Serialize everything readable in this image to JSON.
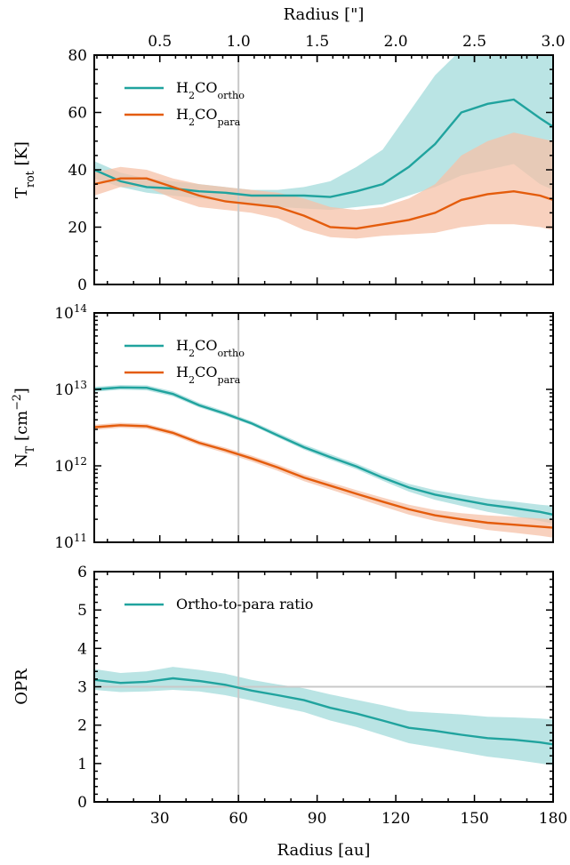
{
  "figure": {
    "top_axis_label": "Radius [\"]",
    "top_ticks": [
      "0.5",
      "1.0",
      "1.5",
      "2.0",
      "2.5",
      "3.0"
    ],
    "bottom_axis_label": "Radius [au]"
  },
  "colors": {
    "ortho": "#20a39e",
    "para": "#e45c0c",
    "ortho_band": "#b3e1e1",
    "para_band": "#f5c2a8",
    "ref_line": "#c8c8c8"
  },
  "chart_data": [
    {
      "type": "line",
      "panel": "temperature",
      "ylabel": "T_rot [K]",
      "xlim": [
        5,
        180
      ],
      "ylim": [
        0,
        80
      ],
      "y_ticks": [
        "0",
        "20",
        "40",
        "60",
        "80"
      ],
      "x_ref_line": 60,
      "grid": false,
      "legend": "upper-left",
      "series": [
        {
          "name": "H2CO_ortho",
          "x": [
            5,
            15,
            25,
            35,
            45,
            55,
            65,
            75,
            85,
            95,
            105,
            115,
            125,
            135,
            145,
            155,
            165,
            175,
            180
          ],
          "y": [
            40,
            36,
            34,
            33.5,
            32.5,
            32,
            31,
            31,
            31,
            30.5,
            32.5,
            35,
            41,
            49,
            60,
            63,
            64.5,
            58,
            55
          ],
          "lower": [
            37,
            34,
            32,
            31,
            30,
            29,
            28,
            27,
            26.5,
            26,
            27,
            28,
            31,
            34,
            38,
            40,
            42,
            35,
            33
          ],
          "upper": [
            43,
            39,
            37,
            36,
            35,
            34,
            33,
            33,
            34,
            36,
            41,
            47,
            60,
            73,
            82,
            85,
            88,
            86,
            85
          ]
        },
        {
          "name": "H2CO_para",
          "x": [
            5,
            15,
            25,
            35,
            45,
            55,
            65,
            75,
            85,
            95,
            105,
            115,
            125,
            135,
            145,
            155,
            165,
            175,
            180
          ],
          "y": [
            35,
            37,
            37,
            34,
            31,
            29,
            28,
            27,
            24,
            20,
            19.5,
            21,
            22.5,
            25,
            29.5,
            31.5,
            32.5,
            31,
            29.5
          ],
          "lower": [
            31,
            34,
            34,
            30,
            27,
            26,
            25,
            23,
            19,
            16.5,
            16,
            17,
            17.5,
            18,
            20,
            21,
            21,
            20,
            19
          ],
          "upper": [
            39,
            41,
            40,
            37,
            35,
            34,
            33,
            32,
            30,
            27,
            26,
            27,
            30,
            35,
            45,
            50,
            53,
            51,
            50
          ]
        }
      ]
    },
    {
      "type": "line",
      "panel": "column_density",
      "ylabel": "N_T [cm^-2]",
      "yscale": "log",
      "xlim": [
        5,
        180
      ],
      "ylim": [
        100000000000.0,
        100000000000000.0
      ],
      "y_ticks": [
        "10^11",
        "10^12",
        "10^13",
        "10^14"
      ],
      "x_ref_line": 60,
      "grid": false,
      "legend": "upper-left",
      "series": [
        {
          "name": "H2CO_ortho",
          "x": [
            5,
            15,
            25,
            35,
            45,
            55,
            65,
            75,
            85,
            95,
            105,
            115,
            125,
            135,
            145,
            155,
            165,
            175,
            180
          ],
          "y": [
            10000000000000.0,
            10600000000000.0,
            10500000000000.0,
            8700000000000.0,
            6200000000000.0,
            4800000000000.0,
            3600000000000.0,
            2500000000000.0,
            1750000000000.0,
            1300000000000.0,
            980000000000.0,
            700000000000.0,
            520000000000.0,
            420000000000.0,
            360000000000.0,
            310000000000.0,
            280000000000.0,
            250000000000.0,
            230000000000.0
          ],
          "lower": [
            9300000000000.0,
            9900000000000.0,
            9700000000000.0,
            8100000000000.0,
            5800000000000.0,
            4500000000000.0,
            3400000000000.0,
            2350000000000.0,
            1630000000000.0,
            1200000000000.0,
            900000000000.0,
            640000000000.0,
            460000000000.0,
            360000000000.0,
            300000000000.0,
            250000000000.0,
            220000000000.0,
            190000000000.0,
            175000000000.0
          ],
          "upper": [
            10800000000000.0,
            11400000000000.0,
            11300000000000.0,
            9400000000000.0,
            6700000000000.0,
            5150000000000.0,
            3850000000000.0,
            2700000000000.0,
            1900000000000.0,
            1420000000000.0,
            1070000000000.0,
            770000000000.0,
            580000000000.0,
            480000000000.0,
            420000000000.0,
            370000000000.0,
            340000000000.0,
            310000000000.0,
            300000000000.0
          ]
        },
        {
          "name": "H2CO_para",
          "x": [
            5,
            15,
            25,
            35,
            45,
            55,
            65,
            75,
            85,
            95,
            105,
            115,
            125,
            135,
            145,
            155,
            165,
            175,
            180
          ],
          "y": [
            3200000000000.0,
            3400000000000.0,
            3300000000000.0,
            2700000000000.0,
            2000000000000.0,
            1600000000000.0,
            1250000000000.0,
            950000000000.0,
            700000000000.0,
            550000000000.0,
            430000000000.0,
            340000000000.0,
            270000000000.0,
            225000000000.0,
            200000000000.0,
            180000000000.0,
            170000000000.0,
            160000000000.0,
            155000000000.0
          ],
          "lower": [
            2950000000000.0,
            3150000000000.0,
            3050000000000.0,
            2500000000000.0,
            1850000000000.0,
            1470000000000.0,
            1140000000000.0,
            860000000000.0,
            630000000000.0,
            490000000000.0,
            380000000000.0,
            295000000000.0,
            230000000000.0,
            190000000000.0,
            165000000000.0,
            145000000000.0,
            133000000000.0,
            122000000000.0,
            115000000000.0
          ],
          "upper": [
            3450000000000.0,
            3650000000000.0,
            3550000000000.0,
            2900000000000.0,
            2150000000000.0,
            1730000000000.0,
            1360000000000.0,
            1040000000000.0,
            770000000000.0,
            610000000000.0,
            480000000000.0,
            385000000000.0,
            310000000000.0,
            265000000000.0,
            240000000000.0,
            225000000000.0,
            215000000000.0,
            205000000000.0,
            200000000000.0
          ]
        }
      ]
    },
    {
      "type": "line",
      "panel": "opr",
      "ylabel": "OPR",
      "xlabel": "Radius [au]",
      "xlim": [
        5,
        180
      ],
      "ylim": [
        0,
        6
      ],
      "x_ticks": [
        "30",
        "60",
        "90",
        "120",
        "150",
        "180"
      ],
      "y_ticks": [
        "0",
        "1",
        "2",
        "3",
        "4",
        "5",
        "6"
      ],
      "x_ref_line": 60,
      "y_ref_line": 3,
      "grid": false,
      "legend": "upper-left",
      "series": [
        {
          "name": "Ortho-to-para ratio",
          "x": [
            5,
            15,
            25,
            35,
            45,
            55,
            65,
            75,
            85,
            95,
            105,
            115,
            125,
            135,
            145,
            155,
            165,
            175,
            180
          ],
          "y": [
            3.18,
            3.1,
            3.13,
            3.22,
            3.15,
            3.05,
            2.9,
            2.78,
            2.65,
            2.45,
            2.3,
            2.12,
            1.93,
            1.85,
            1.75,
            1.66,
            1.62,
            1.55,
            1.5
          ],
          "lower": [
            2.92,
            2.86,
            2.88,
            2.92,
            2.88,
            2.78,
            2.64,
            2.48,
            2.34,
            2.12,
            1.95,
            1.74,
            1.53,
            1.42,
            1.3,
            1.18,
            1.1,
            1.0,
            0.95
          ],
          "upper": [
            3.46,
            3.36,
            3.4,
            3.52,
            3.44,
            3.34,
            3.18,
            3.06,
            2.96,
            2.8,
            2.66,
            2.52,
            2.36,
            2.32,
            2.28,
            2.22,
            2.2,
            2.17,
            2.15
          ]
        }
      ]
    }
  ]
}
